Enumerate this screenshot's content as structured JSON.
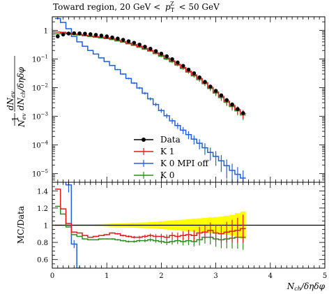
{
  "chart_data": {
    "type": "line",
    "title": "Toward region, 20 GeV < p_T^Z < 50 GeV",
    "title_parts": {
      "text": "Toward region, 20 GeV <",
      "p": "p",
      "sub": "T",
      "sup": "Z",
      "tail": "< 50 GeV"
    },
    "xlabel": "N_ch/δηδφ",
    "xlabel_parts": {
      "n": "N",
      "sub": "ch",
      "rest": "/δηδφ"
    },
    "ylabel_top": "1/N_ev dN_ev/dN_ch/δηδφ",
    "ylabel_top_parts": {
      "num1": "1",
      "den1": "N",
      "den1_sub": "ev",
      "num2": "dN",
      "num2_sub": "ev",
      "den2": "dN",
      "den2_sub": "ch",
      "den2_rest": "/δηδφ"
    },
    "ylabel_bottom": "MC/Data",
    "xlim": [
      0,
      5
    ],
    "xticks": [
      "0",
      "1",
      "2",
      "3",
      "4",
      "5"
    ],
    "main": {
      "yscale": "log",
      "ylim": [
        5e-06,
        3
      ],
      "yticks": [
        {
          "value": 1,
          "label": "1"
        },
        {
          "value": 0.1,
          "label": "10",
          "exp": "−1"
        },
        {
          "value": 0.01,
          "label": "10",
          "exp": "−2"
        },
        {
          "value": 0.001,
          "label": "10",
          "exp": "−3"
        },
        {
          "value": 0.0001,
          "label": "10",
          "exp": "−4"
        },
        {
          "value": 1e-05,
          "label": "10",
          "exp": "−5"
        }
      ]
    },
    "ratio": {
      "ylim": [
        0.5,
        1.5
      ],
      "yticks": [
        {
          "value": 1.4,
          "label": "1.4"
        },
        {
          "value": 1.2,
          "label": "1.2"
        },
        {
          "value": 1.0,
          "label": "1"
        },
        {
          "value": 0.8,
          "label": "0.8"
        },
        {
          "value": 0.6,
          "label": "0.6"
        }
      ]
    },
    "legend_position": "center-left",
    "legend": [
      "Data",
      "K 1",
      "K 0 MPI off",
      "K 0"
    ],
    "binning": {
      "start": 0.05,
      "width": 0.1,
      "count": 35
    },
    "series": [
      {
        "name": "Data",
        "color": "#000000",
        "style": "points",
        "values": [
          0.62,
          0.72,
          0.78,
          0.8,
          0.79,
          0.77,
          0.74,
          0.7,
          0.66,
          0.62,
          0.57,
          0.52,
          0.47,
          0.42,
          0.37,
          0.32,
          0.27,
          0.23,
          0.19,
          0.155,
          0.125,
          0.099,
          0.076,
          0.058,
          0.043,
          0.032,
          0.023,
          0.016,
          0.011,
          0.0078,
          0.0054,
          0.0037,
          0.0026,
          0.0018,
          0.0013
        ]
      },
      {
        "name": "K 1",
        "color": "#e41a1c",
        "style": "step",
        "values": [
          0.88,
          0.86,
          0.8,
          0.74,
          0.72,
          0.68,
          0.64,
          0.61,
          0.58,
          0.55,
          0.51,
          0.46,
          0.41,
          0.36,
          0.32,
          0.28,
          0.235,
          0.2,
          0.165,
          0.135,
          0.108,
          0.086,
          0.066,
          0.051,
          0.038,
          0.028,
          0.021,
          0.015,
          0.0103,
          0.0071,
          0.0049,
          0.0034,
          0.0024,
          0.0017,
          0.00125
        ],
        "ratio": [
          1.42,
          1.19,
          1.02,
          0.92,
          0.91,
          0.88,
          0.86,
          0.87,
          0.88,
          0.89,
          0.91,
          0.9,
          0.88,
          0.87,
          0.86,
          0.86,
          0.87,
          0.88,
          0.87,
          0.87,
          0.86,
          0.88,
          0.87,
          0.88,
          0.89,
          0.88,
          0.91,
          0.92,
          0.94,
          0.91,
          0.9,
          0.92,
          0.93,
          0.94,
          0.96
        ]
      },
      {
        "name": "K 0 MPI off",
        "color": "#1f5fe0",
        "style": "step",
        "values": [
          2.6,
          1.9,
          1.15,
          0.62,
          0.4,
          0.28,
          0.2,
          0.15,
          0.11,
          0.082,
          0.06,
          0.043,
          0.03,
          0.021,
          0.0145,
          0.0098,
          0.0064,
          0.0041,
          0.0026,
          0.0016,
          0.00105,
          0.0007,
          0.00048,
          0.00033,
          0.00023,
          0.00016,
          0.000115,
          8e-05,
          5.5e-05,
          4e-05,
          2.8e-05,
          1.9e-05,
          1.3e-05,
          9.5e-06,
          7e-06
        ],
        "ratio": [
          4.2,
          2.6,
          1.47,
          0.78,
          0.5,
          0.36,
          0.27,
          0.21
        ]
      },
      {
        "name": "K 0",
        "color": "#2e8b1e",
        "style": "step",
        "values": [
          0.76,
          0.82,
          0.76,
          0.71,
          0.69,
          0.65,
          0.61,
          0.58,
          0.55,
          0.52,
          0.48,
          0.43,
          0.39,
          0.34,
          0.3,
          0.26,
          0.22,
          0.19,
          0.155,
          0.125,
          0.1,
          0.08,
          0.062,
          0.047,
          0.035,
          0.026,
          0.019,
          0.0138,
          0.0094,
          0.0065,
          0.0045,
          0.0031,
          0.0022,
          0.00155,
          0.00112
        ],
        "ratio": [
          1.22,
          1.13,
          0.98,
          0.89,
          0.87,
          0.84,
          0.83,
          0.83,
          0.84,
          0.84,
          0.84,
          0.83,
          0.82,
          0.81,
          0.81,
          0.82,
          0.82,
          0.83,
          0.82,
          0.81,
          0.8,
          0.81,
          0.82,
          0.81,
          0.82,
          0.81,
          0.83,
          0.86,
          0.86,
          0.84,
          0.83,
          0.84,
          0.85,
          0.86,
          0.86
        ]
      }
    ],
    "data_uncertainty_band": {
      "color": "#ffff00",
      "half_width": [
        0.01,
        0.01,
        0.01,
        0.01,
        0.01,
        0.01,
        0.01,
        0.012,
        0.013,
        0.015,
        0.018,
        0.02,
        0.022,
        0.025,
        0.028,
        0.03,
        0.033,
        0.036,
        0.04,
        0.045,
        0.05,
        0.055,
        0.06,
        0.065,
        0.07,
        0.075,
        0.08,
        0.085,
        0.09,
        0.095,
        0.1,
        0.11,
        0.12,
        0.14,
        0.16
      ]
    }
  }
}
